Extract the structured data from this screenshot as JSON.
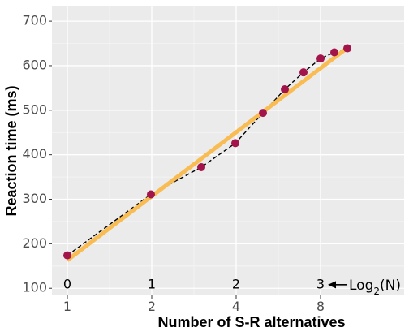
{
  "chart_data": {
    "type": "scatter",
    "xlabel": "Number of S-R alternatives",
    "ylabel": "Reaction time (ms)",
    "x_scale": "log2",
    "xlim": [
      1,
      20
    ],
    "ylim": [
      84,
      733
    ],
    "x_ticks": [
      {
        "value": 1,
        "label": "1"
      },
      {
        "value": 2,
        "label": "2"
      },
      {
        "value": 4,
        "label": "4"
      },
      {
        "value": 8,
        "label": "8"
      }
    ],
    "y_ticks": [
      {
        "value": 100,
        "label": "100"
      },
      {
        "value": 200,
        "label": "200"
      },
      {
        "value": 300,
        "label": "300"
      },
      {
        "value": 400,
        "label": "400"
      },
      {
        "value": 500,
        "label": "500"
      },
      {
        "value": 600,
        "label": "600"
      },
      {
        "value": 700,
        "label": "700"
      }
    ],
    "grid": true,
    "series": [
      {
        "points": [
          {
            "x": 1,
            "y": 174
          },
          {
            "x": 2,
            "y": 311
          },
          {
            "x": 3,
            "y": 372
          },
          {
            "x": 4,
            "y": 426
          },
          {
            "x": 5,
            "y": 494
          },
          {
            "x": 6,
            "y": 547
          },
          {
            "x": 7,
            "y": 585
          },
          {
            "x": 8,
            "y": 616
          },
          {
            "x": 9,
            "y": 630
          },
          {
            "x": 10,
            "y": 639
          }
        ],
        "color": "#a3154a",
        "connector": "dashed",
        "connector_color": "#000000"
      }
    ],
    "fit_line": {
      "x": [
        1,
        10
      ],
      "y": [
        163,
        640
      ],
      "color": "#f9bc52"
    },
    "log2_annotations": [
      {
        "x": 1,
        "label": "0"
      },
      {
        "x": 2,
        "label": "1"
      },
      {
        "x": 4,
        "label": "2"
      },
      {
        "x": 8,
        "label": "3"
      }
    ],
    "log2_annotation_y": 108,
    "log2_arrow_label": "Log",
    "log2_arrow_sub": "2",
    "log2_arrow_suffix": "(N)"
  },
  "colors": {
    "panel": "#ebebeb",
    "grid_major": "#ffffff",
    "grid_minor": "#f5f5f5",
    "point": "#a3154a",
    "fit": "#f9bc52"
  }
}
